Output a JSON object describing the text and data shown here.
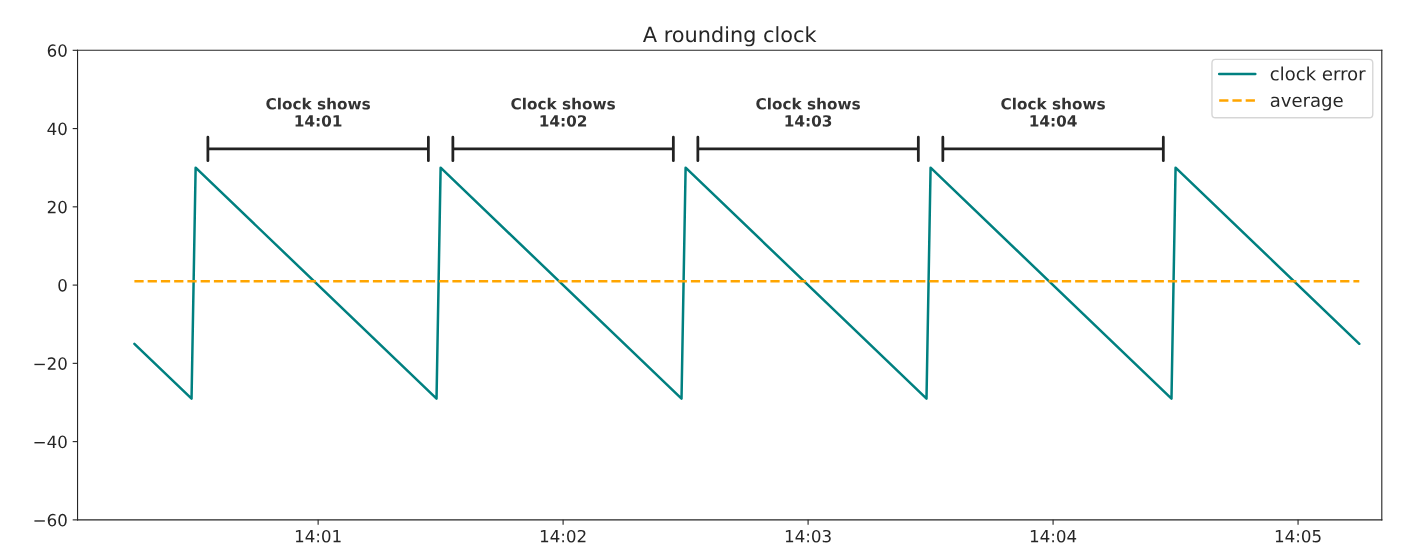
{
  "chart_data": {
    "type": "line",
    "title": "A rounding clock",
    "series": [
      {
        "name": "clock error",
        "color": "#008080",
        "line_style": "solid",
        "x": [
          14.004167,
          14.008056,
          14.008333,
          14.024722,
          14.025,
          14.041389,
          14.041667,
          14.058056,
          14.058333,
          14.074722,
          14.075,
          14.0875
        ],
        "values": [
          -15,
          -29,
          30,
          -29,
          30,
          -29,
          30,
          -29,
          30,
          -29,
          30,
          -15
        ]
      },
      {
        "name": "average",
        "color": "#ffa500",
        "line_style": "dashed",
        "x": [
          14.004167,
          14.0875
        ],
        "values": [
          1,
          1
        ]
      }
    ],
    "xlim": [
      14.0003,
      14.08903
    ],
    "xticks": [
      {
        "value": 14.016667,
        "label": "14:01"
      },
      {
        "value": 14.033333,
        "label": "14:02"
      },
      {
        "value": 14.05,
        "label": "14:03"
      },
      {
        "value": 14.066667,
        "label": "14:04"
      },
      {
        "value": 14.083333,
        "label": "14:05"
      }
    ],
    "ylim": [
      -60,
      60
    ],
    "yticks": [
      -60,
      -40,
      -20,
      0,
      20,
      40,
      60
    ],
    "annotations": [
      "Clock shows\n14:01",
      "Clock shows\n14:02",
      "Clock shows\n14:03",
      "Clock shows\n14:04"
    ],
    "legend": "top right",
    "grid": false
  }
}
